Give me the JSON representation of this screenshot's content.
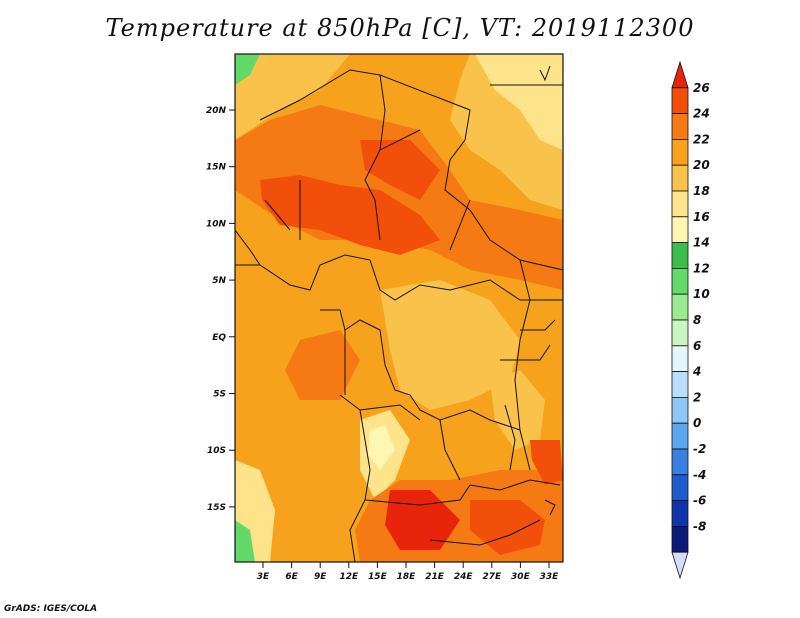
{
  "title": "Temperature at 850hPa [C], VT: 2019112300",
  "credit": "GrADS: IGES/COLA",
  "lat_ticks": [
    "20N",
    "15N",
    "10N",
    "5N",
    "EQ",
    "5S",
    "10S",
    "15S"
  ],
  "lon_ticks": [
    "3E",
    "6E",
    "9E",
    "12E",
    "15E",
    "18E",
    "21E",
    "24E",
    "27E",
    "30E",
    "33E"
  ],
  "colorbar": {
    "labels": [
      "26",
      "24",
      "22",
      "20",
      "18",
      "16",
      "14",
      "12",
      "10",
      "8",
      "6",
      "4",
      "2",
      "0",
      "-2",
      "-4",
      "-6",
      "-8"
    ],
    "colors": [
      "#e8240a",
      "#f24f0a",
      "#f57a14",
      "#f7a21c",
      "#f9c24a",
      "#fde38a",
      "#fff6b4",
      "#3dbd4a",
      "#63d96a",
      "#98eb8e",
      "#c8f5c0",
      "#e3f7fb",
      "#b8e0fb",
      "#8cc7f5",
      "#5aa6ec",
      "#3a80e0",
      "#1f5ccc",
      "#1035a8",
      "#0b1a7a",
      "#d8dcf8"
    ]
  }
}
